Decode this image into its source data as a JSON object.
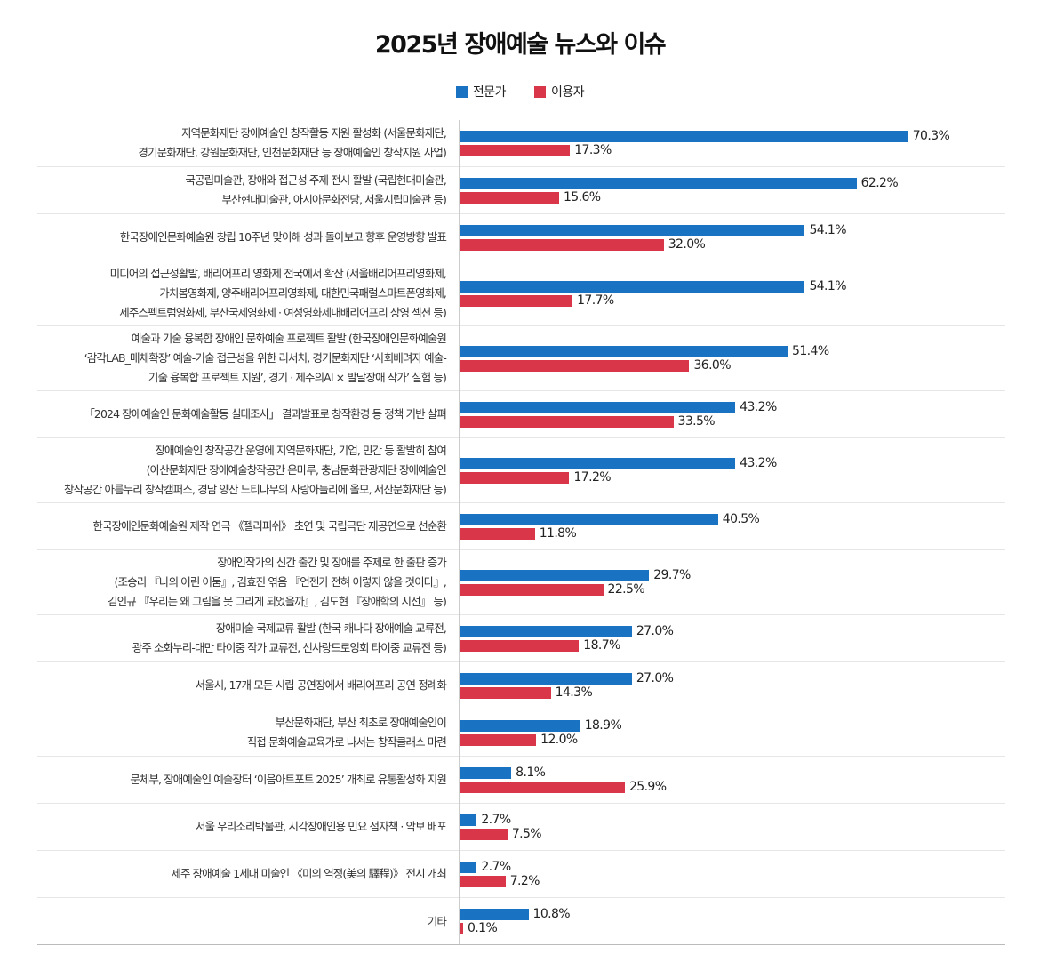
{
  "chart_data": {
    "type": "bar",
    "orientation": "horizontal",
    "title": "2025년 장애예술 뉴스와 이슈",
    "legend_position": "top",
    "unit": "%",
    "xlim": [
      0,
      100
    ],
    "grid": false,
    "colors": {
      "전문가": "#1a72c2",
      "이용자": "#d9364a"
    },
    "series": [
      {
        "name": "전문가",
        "values": [
          70.3,
          62.2,
          54.1,
          54.1,
          51.4,
          43.2,
          43.2,
          40.5,
          29.7,
          27.0,
          27.0,
          18.9,
          8.1,
          2.7,
          2.7,
          10.8
        ]
      },
      {
        "name": "이용자",
        "values": [
          17.3,
          15.6,
          32.0,
          17.7,
          36.0,
          33.5,
          17.2,
          11.8,
          22.5,
          18.7,
          14.3,
          12.0,
          25.9,
          7.5,
          7.2,
          0.1
        ]
      }
    ],
    "categories": [
      [
        "지역문화재단 장애예술인 창작활동 지원 활성화 (서울문화재단,",
        "경기문화재단, 강원문화재단, 인천문화재단 등 장애예술인 창작지원 사업)"
      ],
      [
        "국공립미술관, 장애와 접근성 주제 전시 활발 (국립현대미술관,",
        "부산현대미술관, 아시아문화전당, 서울시립미술관 등)"
      ],
      [
        "한국장애인문화예술원 창립 10주년 맞이해 성과 돌아보고 향후 운영방향 발표"
      ],
      [
        "미디어의 접근성활발, 배리어프리 영화제 전국에서 확산 (서울배리어프리영화제,",
        "가치봄영화제, 양주배리어프리영화제, 대한민국패럴스마트폰영화제,",
        "제주스펙트럼영화제, 부산국제영화제 · 여성영화제내배리어프리 상영 섹션 등)"
      ],
      [
        "예술과 기술 융복합 장애인 문화예술 프로젝트 활발 (한국장애인문화예술원",
        "‘감각LAB_매체확장’ 예술-기술 접근성을 위한 리서치, 경기문화재단 ‘사회배려자 예술-",
        "기술 융복합 프로젝트 지원’, 경기 · 제주의AI × 발달장애 작가’ 실험 등)"
      ],
      [
        "「2024 장애예술인 문화예술활동 실태조사」 결과발표로 창작환경 등 정책 기반 살펴"
      ],
      [
        "장애예술인 창작공간 운영에 지역문화재단, 기업, 민간 등 활발히 참여",
        "(아산문화재단 장애예술창작공간 온마루, 충남문화관광재단 장애예술인",
        "창작공간 아름누리 창작캠퍼스, 경남 양산 느티나무의 사랑아들리에 올모, 서산문화재단 등)"
      ],
      [
        "한국장애인문화예술원 제작 연극 《젤리피쉬》 초연 및 국립극단 재공연으로 선순환"
      ],
      [
        "장애인작가의 신간 출간 및 장애를 주제로 한 출판 증가",
        "(조승리 『나의 어린 어둠』, 김효진 엮음 『언젠가 전혀 이렇지 않을 것이다』,",
        "김인규 『우리는 왜 그림을 못 그리게 되었을까』, 김도현 『장애학의 시선』 등)"
      ],
      [
        "장애미술 국제교류 활발 (한국-캐나다 장애예술 교류전,",
        "광주 소화누리-대만 타이중 작가 교류전, 선사랑드로잉회 타이중 교류전 등)"
      ],
      [
        "서울시, 17개 모든 시립 공연장에서 배리어프리 공연 정례화"
      ],
      [
        "부산문화재단, 부산 최초로 장애예술인이",
        "직접 문화예술교육가로 나서는 창작클래스 마련"
      ],
      [
        "문체부, 장애예술인 예술장터 ‘이음아트포트 2025’ 개최로 유통활성화 지원"
      ],
      [
        "서울 우리소리박물관, 시각장애인용 민요 점자책 · 악보 배포"
      ],
      [
        "제주 장애예술 1세대 미술인 《미의 역정(美의 驛程)》 전시 개최"
      ],
      [
        "기타"
      ]
    ]
  }
}
